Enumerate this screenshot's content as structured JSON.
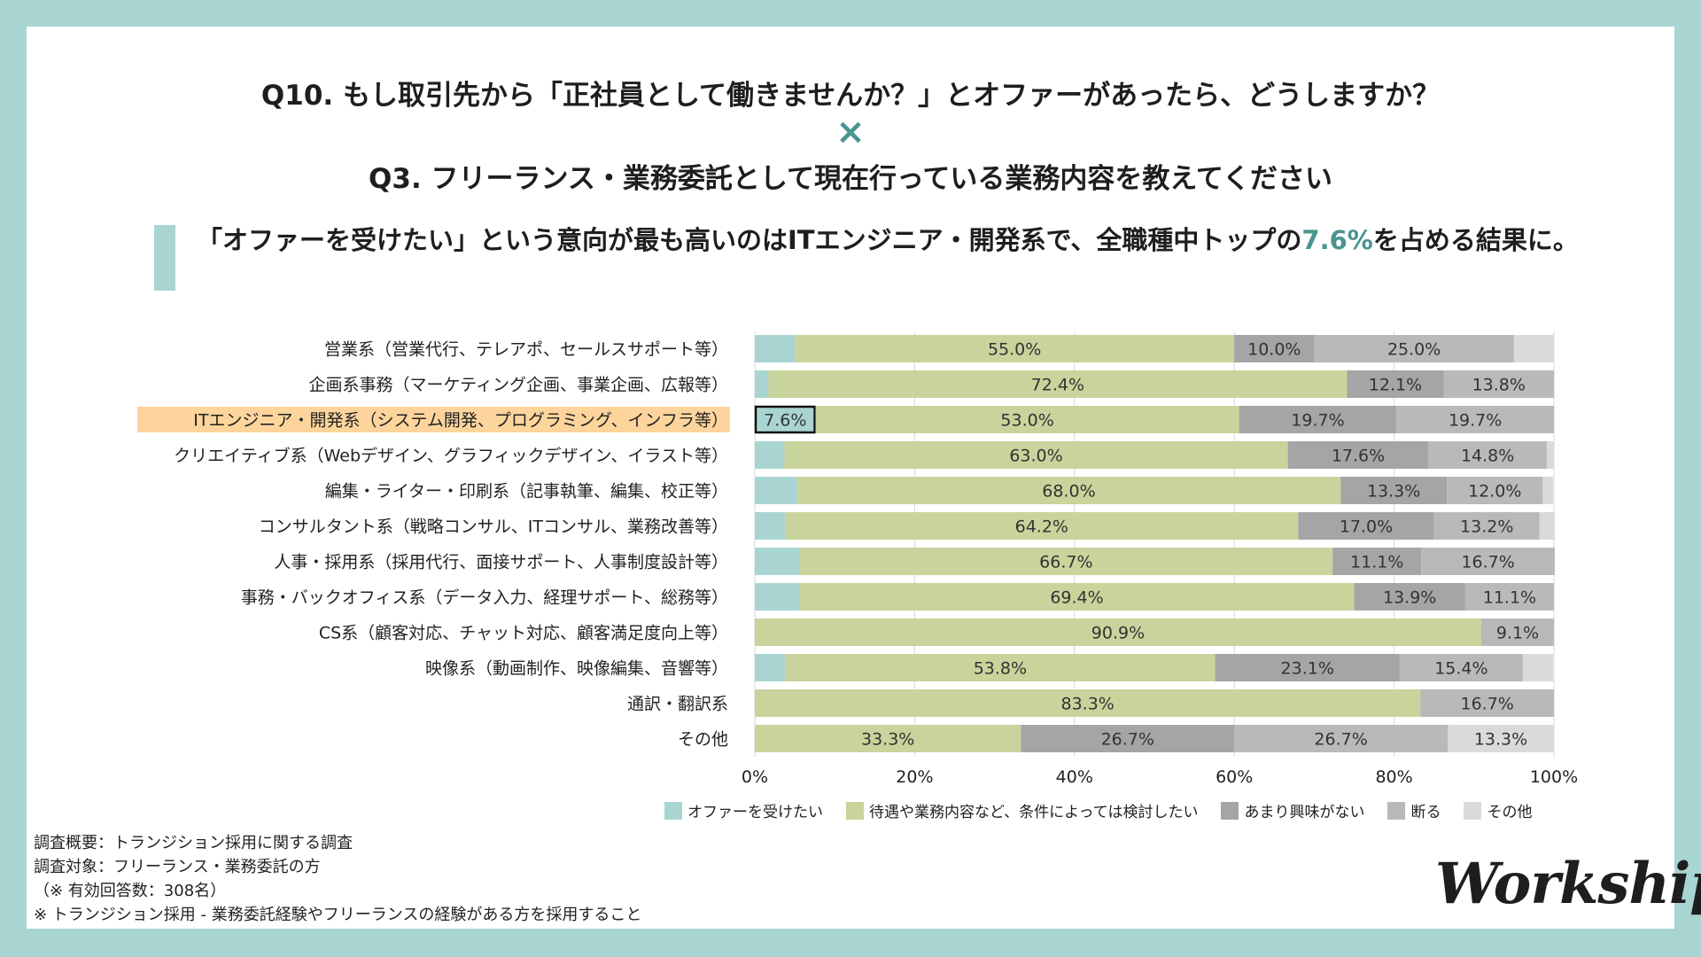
{
  "header": {
    "question1": "Q10. もし取引先から「正社員として働きませんか？」とオファーがあったら、どうしますか？",
    "cross": "×",
    "question2": "Q3. フリーランス・業務委託として現在行っている業務内容を教えてください"
  },
  "headline": {
    "part1": "「オファーを受けたい」という意向が最も高いのはITエンジニア・開発系で、全職種中トップの",
    "highlight": "7.6%",
    "part2": "を占める結果に。"
  },
  "chart_data": {
    "type": "bar",
    "orientation": "horizontal",
    "stacked": true,
    "percent_scale": true,
    "xlim": [
      0,
      100
    ],
    "xticks": [
      "0%",
      "20%",
      "40%",
      "60%",
      "80%",
      "100%"
    ],
    "grid": true,
    "highlight_category_index": 2,
    "highlight_cell": {
      "row": 2,
      "series": 0
    },
    "categories": [
      "営業系（営業代行、テレアポ、セールスサポート等）",
      "企画系事務（マーケティング企画、事業企画、広報等）",
      "ITエンジニア・開発系（システム開発、プログラミング、インフラ等）",
      "クリエイティブ系（Webデザイン、グラフィックデザイン、イラスト等）",
      "編集・ライター・印刷系（記事執筆、編集、校正等）",
      "コンサルタント系（戦略コンサル、ITコンサル、業務改善等）",
      "人事・採用系（採用代行、面接サポート、人事制度設計等）",
      "事務・バックオフィス系（データ入力、経理サポート、総務等）",
      "CS系（顧客対応、チャット対応、顧客満足度向上等）",
      "映像系（動画制作、映像編集、音響等）",
      "通訳・翻訳系",
      "その他"
    ],
    "series": [
      {
        "name": "オファーを受けたい",
        "color": "#a8d5d2",
        "values": [
          5.0,
          1.7,
          7.6,
          3.7,
          5.3,
          3.8,
          5.6,
          5.6,
          0,
          3.8,
          0,
          0
        ],
        "labels": [
          "",
          "",
          "7.6%",
          "",
          "",
          "",
          "",
          "",
          "",
          "",
          "",
          ""
        ]
      },
      {
        "name": "待遇や業務内容など、条件によっては検討したい",
        "color": "#c8d49b",
        "values": [
          55.0,
          72.4,
          53.0,
          63.0,
          68.0,
          64.2,
          66.7,
          69.4,
          90.9,
          53.8,
          83.3,
          33.3
        ],
        "labels": [
          "55.0%",
          "72.4%",
          "53.0%",
          "63.0%",
          "68.0%",
          "64.2%",
          "66.7%",
          "69.4%",
          "90.9%",
          "53.8%",
          "83.3%",
          "33.3%"
        ]
      },
      {
        "name": "あまり興味がない",
        "color": "#a5a5a5",
        "values": [
          10.0,
          12.1,
          19.7,
          17.6,
          13.3,
          17.0,
          11.1,
          13.9,
          0,
          23.1,
          0,
          26.7
        ],
        "labels": [
          "10.0%",
          "12.1%",
          "19.7%",
          "17.6%",
          "13.3%",
          "17.0%",
          "11.1%",
          "13.9%",
          "",
          "23.1%",
          "",
          "26.7%"
        ]
      },
      {
        "name": "断る",
        "color": "#b9b9b9",
        "values": [
          25.0,
          13.8,
          19.7,
          14.8,
          12.0,
          13.2,
          16.7,
          11.1,
          9.1,
          15.4,
          16.7,
          26.7
        ],
        "labels": [
          "25.0%",
          "13.8%",
          "19.7%",
          "14.8%",
          "12.0%",
          "13.2%",
          "16.7%",
          "11.1%",
          "9.1%",
          "15.4%",
          "16.7%",
          "26.7%"
        ]
      },
      {
        "name": "その他",
        "color": "#dadada",
        "values": [
          5.0,
          0,
          0,
          0.9,
          1.3,
          1.9,
          0,
          0,
          0,
          3.8,
          0,
          13.3
        ],
        "labels": [
          "",
          "",
          "",
          "",
          "",
          "",
          "",
          "",
          "",
          "",
          "",
          "13.3%"
        ]
      }
    ]
  },
  "footnote": {
    "line1": "調査概要：トランジション採用に関する調査",
    "line2": "調査対象：フリーランス・業務委託の方",
    "line3": "（※ 有効回答数：308名）",
    "line4": "※ トランジション採用 - 業務委託経験やフリーランスの経験がある方を採用すること"
  },
  "logo": {
    "text": "Workship"
  },
  "colors": {
    "frame": "#a8d5d2",
    "accent_text": "#4a948f",
    "category_highlight": "#fdd49c"
  }
}
